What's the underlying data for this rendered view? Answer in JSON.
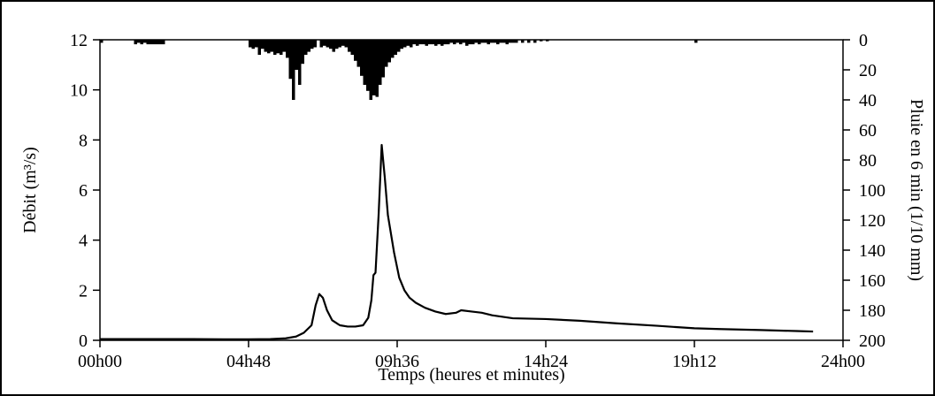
{
  "chart_data": {
    "type": "line",
    "title": "",
    "xlabel": "Temps (heures et minutes)",
    "ylabel": "Débit (m³/s)",
    "y2label": "Pluie en 6 min (1/10 mm)",
    "xlim_minutes": [
      0,
      1440
    ],
    "ylim": [
      0,
      12
    ],
    "y2lim": [
      0,
      200
    ],
    "y2_inverted": true,
    "x_ticks": [
      {
        "value": 0,
        "label": "00h00"
      },
      {
        "value": 288,
        "label": "04h48"
      },
      {
        "value": 576,
        "label": "09h36"
      },
      {
        "value": 864,
        "label": "14h24"
      },
      {
        "value": 1152,
        "label": "19h12"
      },
      {
        "value": 1440,
        "label": "24h00"
      }
    ],
    "y_ticks": [
      "0",
      "2",
      "4",
      "6",
      "8",
      "10",
      "12"
    ],
    "y2_ticks": [
      "0",
      "20",
      "40",
      "60",
      "80",
      "100",
      "120",
      "140",
      "160",
      "180",
      "200"
    ],
    "grid": false,
    "legend": "none",
    "colors": {
      "line": "#000000",
      "bars": "#000000"
    },
    "series": [
      {
        "type": "line",
        "axis": "left",
        "x_minutes": [
          0,
          60,
          120,
          180,
          240,
          288,
          330,
          360,
          380,
          395,
          410,
          418,
          425,
          432,
          440,
          450,
          465,
          480,
          495,
          510,
          520,
          526,
          530,
          534,
          540,
          546,
          552,
          558,
          570,
          580,
          590,
          600,
          612,
          630,
          650,
          670,
          690,
          700,
          720,
          740,
          760,
          800,
          864,
          930,
          1000,
          1080,
          1152,
          1200,
          1280,
          1350,
          1382
        ],
        "values": [
          0.05,
          0.05,
          0.05,
          0.05,
          0.04,
          0.04,
          0.05,
          0.08,
          0.15,
          0.3,
          0.6,
          1.4,
          1.85,
          1.7,
          1.2,
          0.8,
          0.6,
          0.55,
          0.55,
          0.6,
          0.9,
          1.6,
          2.6,
          2.7,
          5.0,
          7.8,
          6.5,
          5.0,
          3.5,
          2.5,
          2.0,
          1.7,
          1.5,
          1.3,
          1.15,
          1.05,
          1.1,
          1.2,
          1.15,
          1.1,
          1.0,
          0.88,
          0.85,
          0.78,
          0.68,
          0.58,
          0.48,
          0.45,
          0.41,
          0.37,
          0.35
        ]
      },
      {
        "type": "bar",
        "axis": "right",
        "name": "",
        "bar_interval_minutes": 6,
        "x_minutes": [
          0,
          66,
          72,
          78,
          84,
          90,
          96,
          102,
          108,
          114,
          120,
          288,
          294,
          300,
          306,
          312,
          318,
          324,
          330,
          336,
          342,
          348,
          354,
          360,
          366,
          372,
          378,
          384,
          390,
          396,
          402,
          408,
          414,
          426,
          432,
          438,
          444,
          450,
          456,
          462,
          468,
          474,
          480,
          486,
          492,
          498,
          504,
          510,
          516,
          522,
          528,
          534,
          540,
          546,
          552,
          558,
          564,
          570,
          576,
          582,
          588,
          594,
          600,
          606,
          612,
          618,
          624,
          630,
          636,
          642,
          648,
          654,
          660,
          666,
          672,
          678,
          684,
          690,
          696,
          702,
          708,
          714,
          720,
          726,
          732,
          738,
          744,
          750,
          756,
          762,
          768,
          774,
          780,
          786,
          792,
          798,
          804,
          816,
          828,
          840,
          852,
          864,
          1152
        ],
        "values": [
          2,
          3,
          2,
          3,
          2,
          3,
          3,
          3,
          3,
          3,
          3,
          5,
          6,
          5,
          10,
          6,
          8,
          9,
          8,
          10,
          9,
          10,
          8,
          12,
          26,
          40,
          20,
          30,
          16,
          10,
          8,
          6,
          5,
          5,
          4,
          5,
          6,
          8,
          6,
          5,
          4,
          5,
          8,
          10,
          14,
          18,
          24,
          30,
          34,
          40,
          37,
          38,
          30,
          25,
          18,
          15,
          12,
          10,
          8,
          6,
          5,
          4,
          5,
          3,
          4,
          3,
          3,
          4,
          3,
          3,
          4,
          3,
          4,
          3,
          3,
          2,
          3,
          2,
          3,
          2,
          4,
          3,
          3,
          2,
          3,
          2,
          2,
          3,
          2,
          2,
          3,
          2,
          2,
          3,
          2,
          2,
          2,
          2,
          2,
          2,
          1,
          1,
          2
        ]
      }
    ]
  }
}
